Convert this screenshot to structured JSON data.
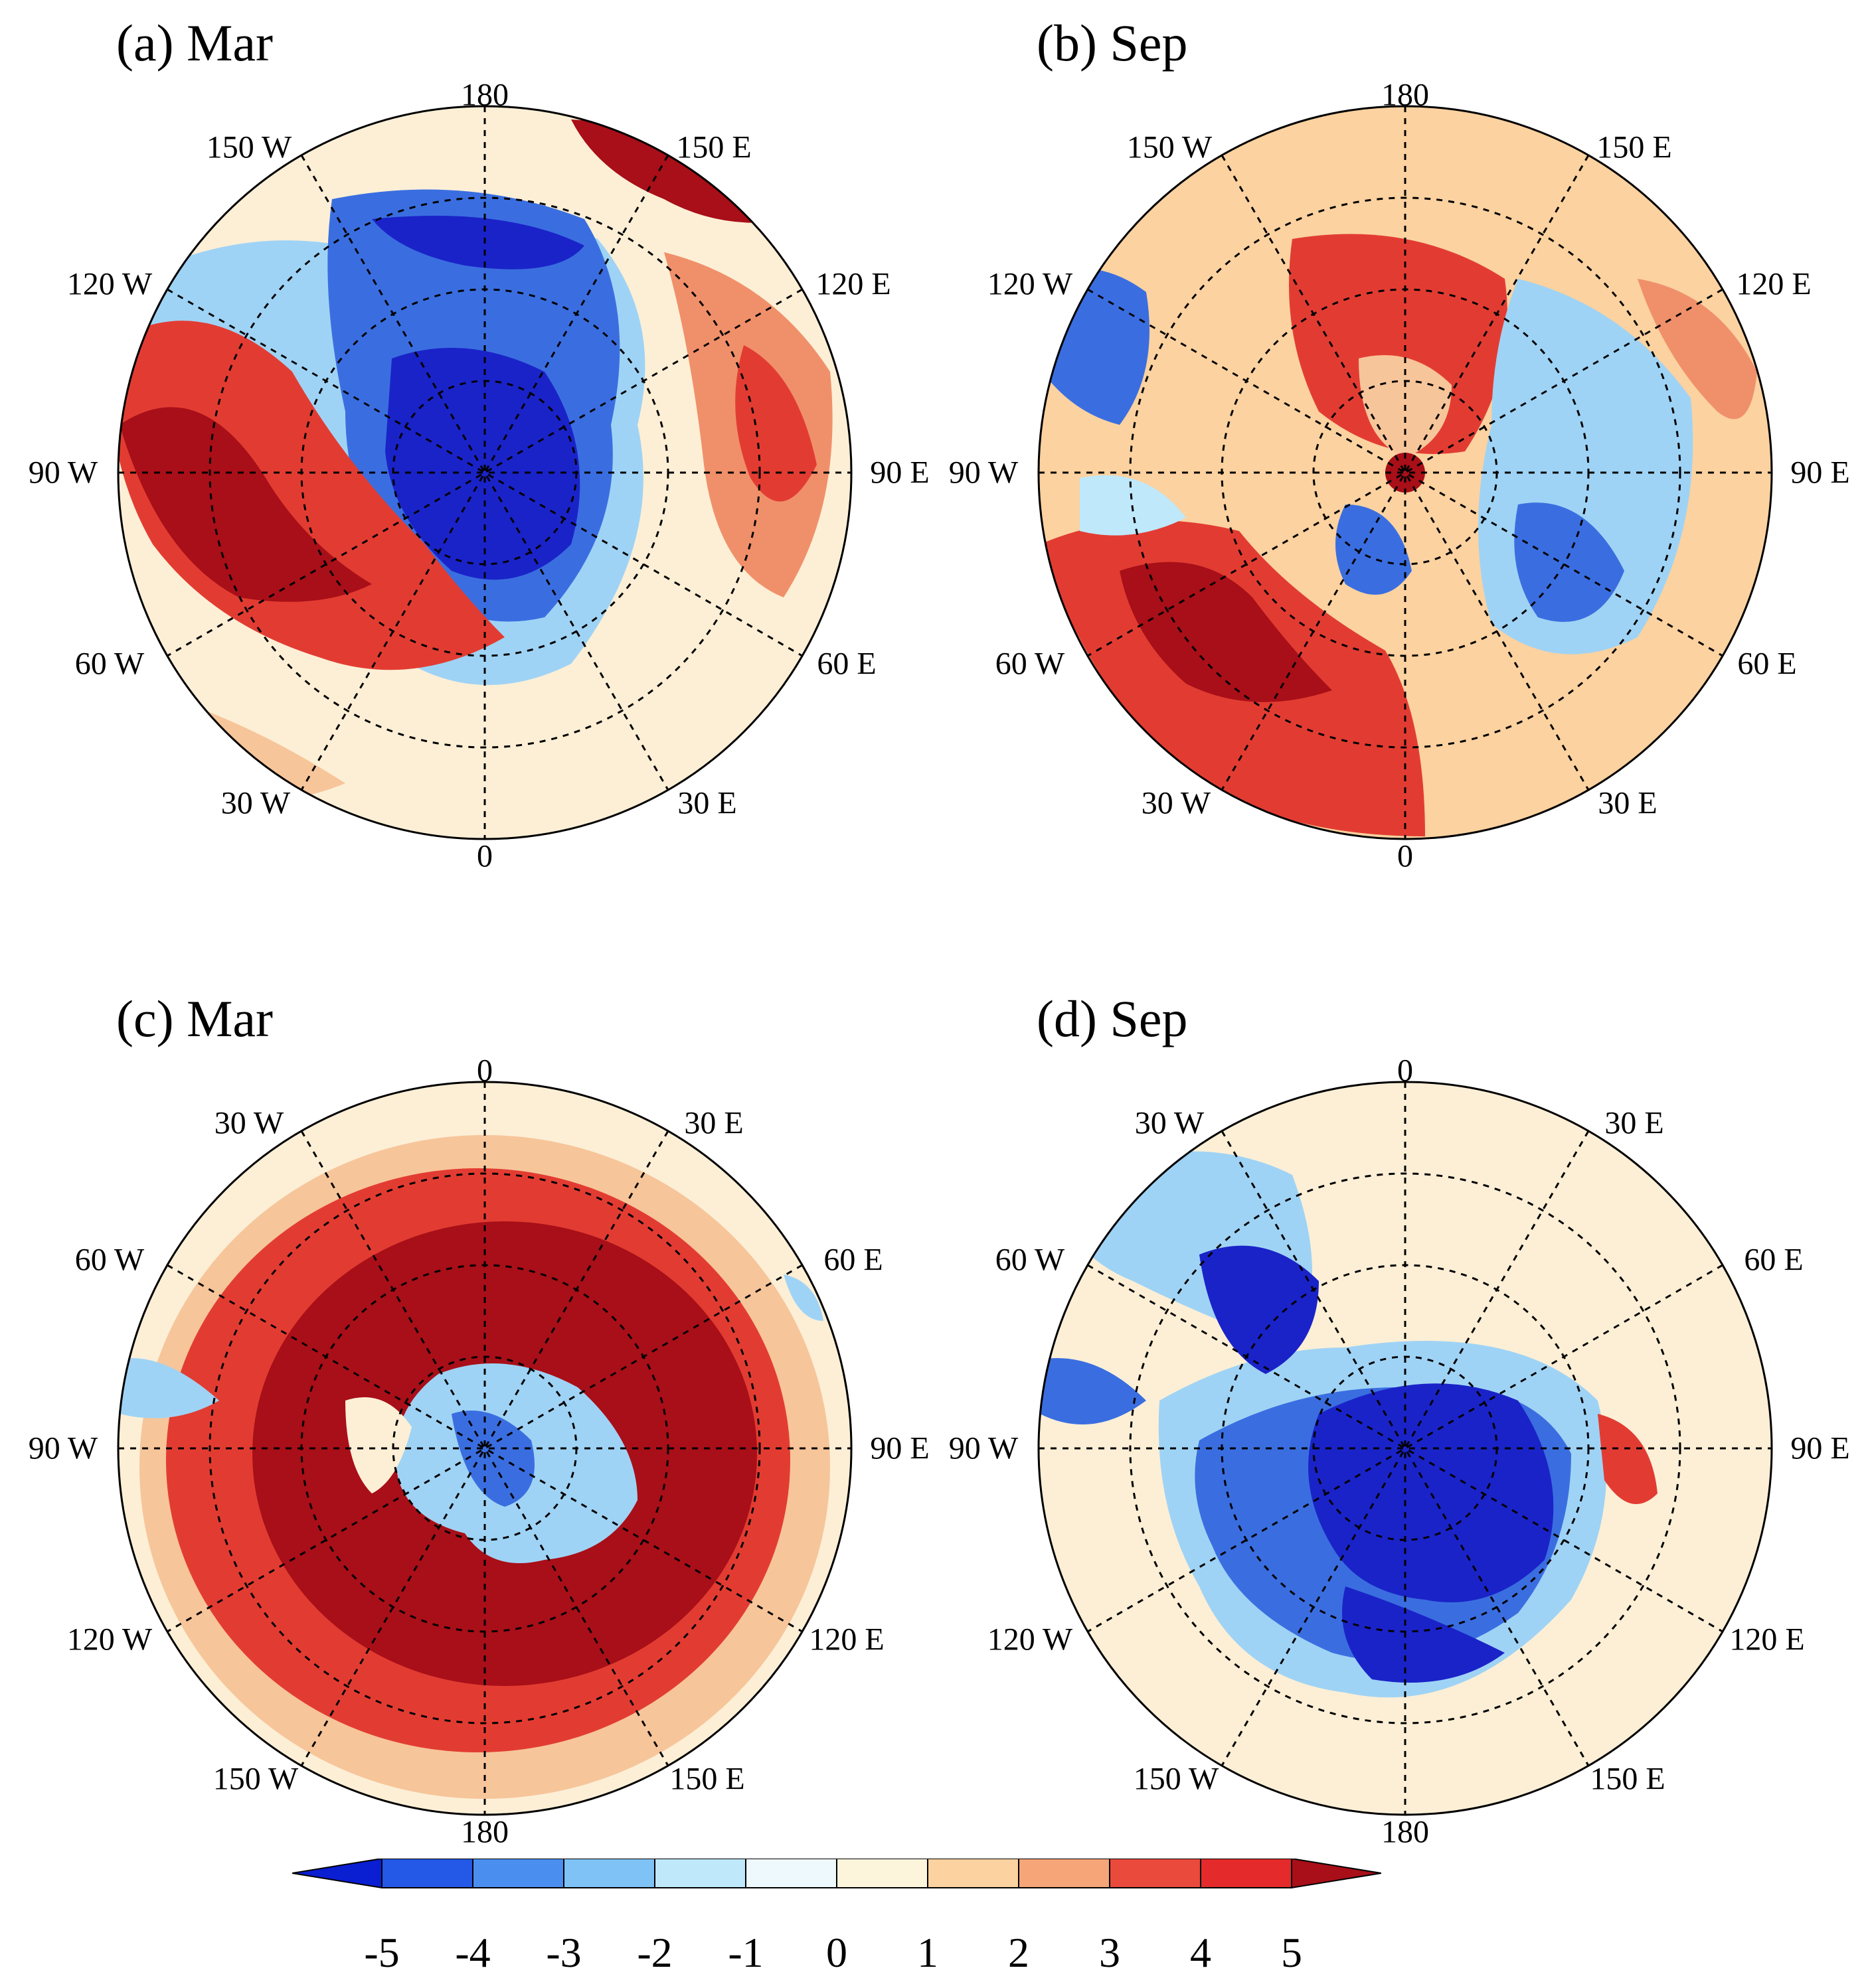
{
  "panels": [
    {
      "title": "(a) Mar",
      "hemisphere": "north",
      "labels": {
        "top": "180",
        "bottom": "0",
        "left": "90 W",
        "right": "90 E",
        "ul1": "150 W",
        "ul2": "120 W",
        "ur1": "150 E",
        "ur2": "120 E",
        "ll1": "60 W",
        "ll2": "30 W",
        "lr1": "60 E",
        "lr2": "30 E"
      }
    },
    {
      "title": "(b) Sep",
      "hemisphere": "north",
      "labels": {
        "top": "180",
        "bottom": "0",
        "left": "90 W",
        "right": "90 E",
        "ul1": "150 W",
        "ul2": "120 W",
        "ur1": "150 E",
        "ur2": "120 E",
        "ll1": "60 W",
        "ll2": "30 W",
        "lr1": "60 E",
        "lr2": "30 E"
      }
    },
    {
      "title": "(c) Mar",
      "hemisphere": "south",
      "labels": {
        "top": "0",
        "bottom": "180",
        "left": "90 W",
        "right": "90 E",
        "ul1": "30 W",
        "ul2": "60 W",
        "ur1": "30 E",
        "ur2": "60 E",
        "ll1": "120 W",
        "ll2": "150 W",
        "lr1": "120 E",
        "lr2": "150 E"
      }
    },
    {
      "title": "(d) Sep",
      "hemisphere": "south",
      "labels": {
        "top": "0",
        "bottom": "180",
        "left": "90 W",
        "right": "90 E",
        "ul1": "30 W",
        "ul2": "60 W",
        "ur1": "30 E",
        "ur2": "60 E",
        "ll1": "120 W",
        "ll2": "150 W",
        "lr1": "120 E",
        "lr2": "150 E"
      }
    }
  ],
  "colorbar": {
    "ticks": [
      "-5",
      "-4",
      "-3",
      "-2",
      "-1",
      "0",
      "1",
      "2",
      "3",
      "4",
      "5"
    ],
    "colors": [
      "#0a1ed2",
      "#2458e6",
      "#4a8ff0",
      "#7fc2f6",
      "#bfe8fb",
      "#eef9fd",
      "#fdf4dc",
      "#fbd2a0",
      "#f5a577",
      "#ea4a3c",
      "#e42a2a",
      "#a80f18"
    ]
  },
  "colors": {
    "deep_blue": "#1a23c8",
    "blue": "#3a6ee0",
    "light_blue": "#9fd3f5",
    "pale": "#f3f9fb",
    "cream": "#fcefd6",
    "peach": "#f7c59a",
    "orange": "#f0906a",
    "red": "#e23c32",
    "dark_red": "#a80f18"
  }
}
